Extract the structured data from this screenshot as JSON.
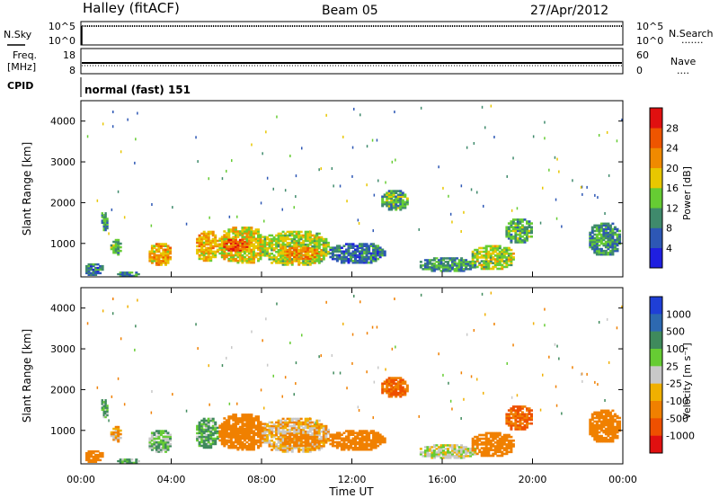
{
  "header": {
    "station": "Halley (fitACF)",
    "beam": "Beam 05",
    "date": "27/Apr/2012"
  },
  "strip1": {
    "left_label": "N.Sky",
    "left_ticks": [
      "10^5",
      "10^0"
    ],
    "right_ticks": [
      "10^5",
      "10^0"
    ],
    "right_label": "N.Search",
    "right_dots": "......."
  },
  "strip2": {
    "left_label_1": "Freq.",
    "left_label_2": "[MHz]",
    "left_ticks": [
      "18",
      "8"
    ],
    "right_ticks": [
      "60",
      "0"
    ],
    "right_label": "Nave",
    "right_dots": "...."
  },
  "cpid": {
    "label": "CPID",
    "text": "normal (fast) 151"
  },
  "panels": {
    "ylabel": "Slant Range [km]",
    "yticks": [
      "1000",
      "2000",
      "3000",
      "4000"
    ],
    "xticks": [
      "00:00",
      "04:00",
      "08:00",
      "12:00",
      "16:00",
      "20:00",
      "00:00"
    ],
    "xlabel": "Time UT"
  },
  "power_scale": {
    "title": "Power [dB]",
    "ticks": [
      "4",
      "8",
      "12",
      "16",
      "20",
      "24",
      "28"
    ],
    "colors": [
      "#1f1fe0",
      "#2d57b5",
      "#3f8a6c",
      "#66cc33",
      "#e8c700",
      "#f08a00",
      "#ee5500",
      "#e01010"
    ]
  },
  "velocity_scale": {
    "title": "Velocity [m s⁻¹]",
    "ticks": [
      "1000",
      "500",
      "100",
      "25",
      "-25",
      "-100",
      "-500",
      "-1000"
    ],
    "colors": [
      "#1f3fd6",
      "#2d69b0",
      "#3f8a5c",
      "#66cc33",
      "#c8c8c8",
      "#f0b000",
      "#f08000",
      "#ee5000",
      "#e01010"
    ]
  },
  "chart_data": {
    "type": "heatmap",
    "x_range_hours": [
      0,
      24
    ],
    "y_range_km": [
      180,
      4500
    ],
    "regions": [
      {
        "t": [
          0.2,
          1.0
        ],
        "r": [
          200,
          500
        ],
        "power": 8,
        "vel": -150
      },
      {
        "t": [
          1.6,
          2.6
        ],
        "r": [
          180,
          300
        ],
        "power": 10,
        "vel": 60
      },
      {
        "t": [
          0.9,
          1.2
        ],
        "r": [
          1300,
          1800
        ],
        "power": 10,
        "vel": 60
      },
      {
        "t": [
          1.3,
          1.8
        ],
        "r": [
          700,
          1100
        ],
        "power": 12,
        "vel": -60
      },
      {
        "t": [
          3.0,
          4.0
        ],
        "r": [
          450,
          1000
        ],
        "power": 20,
        "vel": 40
      },
      {
        "t": [
          5.1,
          6.1
        ],
        "r": [
          550,
          1300
        ],
        "power": 20,
        "vel": 70
      },
      {
        "t": [
          6.1,
          8.2
        ],
        "r": [
          500,
          1400
        ],
        "power": 18,
        "vel": -180
      },
      {
        "t": [
          6.3,
          7.4
        ],
        "r": [
          800,
          1100
        ],
        "power": 26,
        "vel": -200
      },
      {
        "t": [
          8.0,
          11.0
        ],
        "r": [
          450,
          1300
        ],
        "power": 16,
        "vel": -40
      },
      {
        "t": [
          9.0,
          10.5
        ],
        "r": [
          600,
          900
        ],
        "power": 22,
        "vel": -150
      },
      {
        "t": [
          11.0,
          13.5
        ],
        "r": [
          500,
          1000
        ],
        "power": 8,
        "vel": -200
      },
      {
        "t": [
          13.3,
          14.5
        ],
        "r": [
          1800,
          2300
        ],
        "power": 12,
        "vel": -300
      },
      {
        "t": [
          15.0,
          17.5
        ],
        "r": [
          300,
          650
        ],
        "power": 10,
        "vel": 0
      },
      {
        "t": [
          17.3,
          19.2
        ],
        "r": [
          350,
          950
        ],
        "power": 16,
        "vel": -200
      },
      {
        "t": [
          18.8,
          20.0
        ],
        "r": [
          1000,
          1600
        ],
        "power": 12,
        "vel": -300
      },
      {
        "t": [
          22.5,
          23.9
        ],
        "r": [
          700,
          1500
        ],
        "power": 10,
        "vel": -120
      }
    ]
  }
}
